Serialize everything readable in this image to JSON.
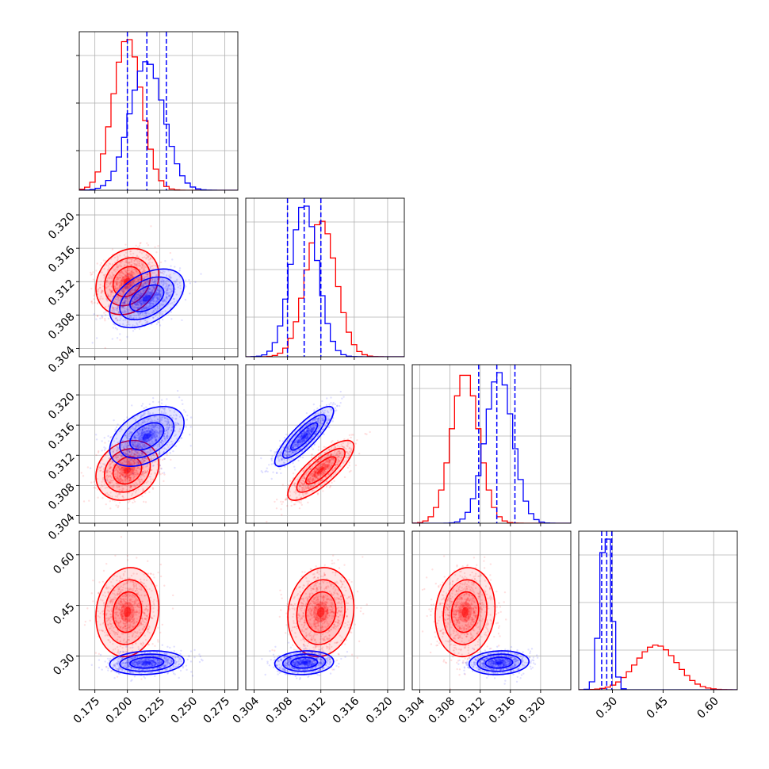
{
  "chart_data": {
    "type": "corner",
    "grid": true,
    "colors": {
      "red_series": "#ff0000",
      "blue_series": "#0000ff"
    },
    "series": [
      {
        "color": "#ff0000",
        "means": [
          0.2,
          0.312,
          0.31,
          0.43
        ],
        "sd": [
          0.011,
          0.0018,
          0.0018,
          0.06
        ],
        "corr": [
          [
            0,
            0.2,
            0.2,
            0.1
          ],
          [
            0.2,
            0,
            0.8,
            0.1
          ],
          [
            0.2,
            0.8,
            0,
            0.1
          ],
          [
            0.1,
            0.1,
            0.1,
            0
          ]
        ]
      },
      {
        "color": "#0000ff",
        "means": [
          0.215,
          0.31,
          0.3145,
          0.28
        ],
        "sd": [
          0.013,
          0.0016,
          0.0018,
          0.016
        ],
        "corr": [
          [
            0,
            0.45,
            0.45,
            0.15
          ],
          [
            0.45,
            0,
            0.85,
            0.1
          ],
          [
            0.45,
            0.85,
            0,
            0.1
          ],
          [
            0.15,
            0.1,
            0.1,
            0
          ]
        ]
      }
    ],
    "quantile_lines": [
      [
        0.2,
        0.215,
        0.23
      ],
      [
        0.308,
        0.31,
        0.312
      ],
      [
        0.3118,
        0.3142,
        0.3166
      ],
      [
        0.268,
        0.283,
        0.298
      ]
    ],
    "variables": [
      {
        "range": [
          0.163,
          0.285
        ],
        "ticks": [
          0.175,
          0.2,
          0.225,
          0.25,
          0.275
        ],
        "tick_labels": [
          "0.175",
          "0.200",
          "0.225",
          "0.250",
          "0.275"
        ]
      },
      {
        "range": [
          0.303,
          0.322
        ],
        "ticks": [
          0.304,
          0.308,
          0.312,
          0.316,
          0.32
        ],
        "tick_labels": [
          "0.304",
          "0.308",
          "0.312",
          "0.316",
          "0.320"
        ]
      },
      {
        "range": [
          0.303,
          0.324
        ],
        "ticks": [
          0.304,
          0.308,
          0.312,
          0.316,
          0.32
        ],
        "tick_labels": [
          "0.304",
          "0.308",
          "0.312",
          "0.316",
          "0.320"
        ]
      },
      {
        "range": [
          0.2,
          0.67
        ],
        "ticks": [
          0.3,
          0.45,
          0.6
        ],
        "tick_labels": [
          "0.30",
          "0.45",
          "0.60"
        ]
      }
    ]
  }
}
